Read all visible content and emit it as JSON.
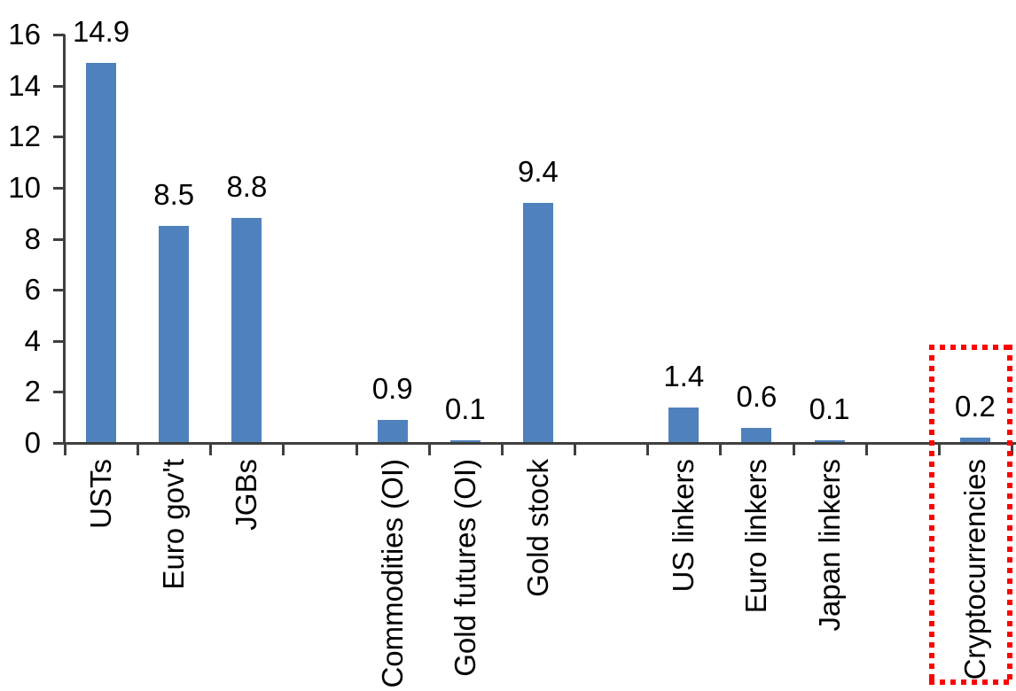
{
  "chart_data": {
    "type": "bar",
    "title": "",
    "xlabel": "",
    "ylabel": "",
    "ylim": [
      0,
      16
    ],
    "yticks": [
      0,
      2,
      4,
      6,
      8,
      10,
      12,
      14,
      16
    ],
    "grid": false,
    "legend": false,
    "bar_color": "#4f81bd",
    "axis_color": "#3f3f3f",
    "text_color": "#000000",
    "highlight_box_color": "#ff0000",
    "items": [
      {
        "label": "USTs",
        "value": 14.9,
        "value_label": "14.9"
      },
      {
        "label": "Euro gov't",
        "value": 8.5,
        "value_label": "8.5"
      },
      {
        "label": "JGBs",
        "value": 8.8,
        "value_label": "8.8"
      },
      {
        "label": "",
        "value": null
      },
      {
        "label": "Commodities (OI)",
        "value": 0.9,
        "value_label": "0.9"
      },
      {
        "label": "Gold futures (OI)",
        "value": 0.1,
        "value_label": "0.1"
      },
      {
        "label": "Gold stock",
        "value": 9.4,
        "value_label": "9.4"
      },
      {
        "label": "",
        "value": null
      },
      {
        "label": "US linkers",
        "value": 1.4,
        "value_label": "1.4"
      },
      {
        "label": "Euro linkers",
        "value": 0.6,
        "value_label": "0.6"
      },
      {
        "label": "Japan linkers",
        "value": 0.1,
        "value_label": "0.1"
      },
      {
        "label": "",
        "value": null
      },
      {
        "label": "Cryptocurrencies",
        "value": 0.2,
        "value_label": "0.2",
        "highlighted": true
      }
    ],
    "annotation": {
      "type": "dotted-box",
      "target": "Cryptocurrencies",
      "color": "#ff0000"
    }
  }
}
